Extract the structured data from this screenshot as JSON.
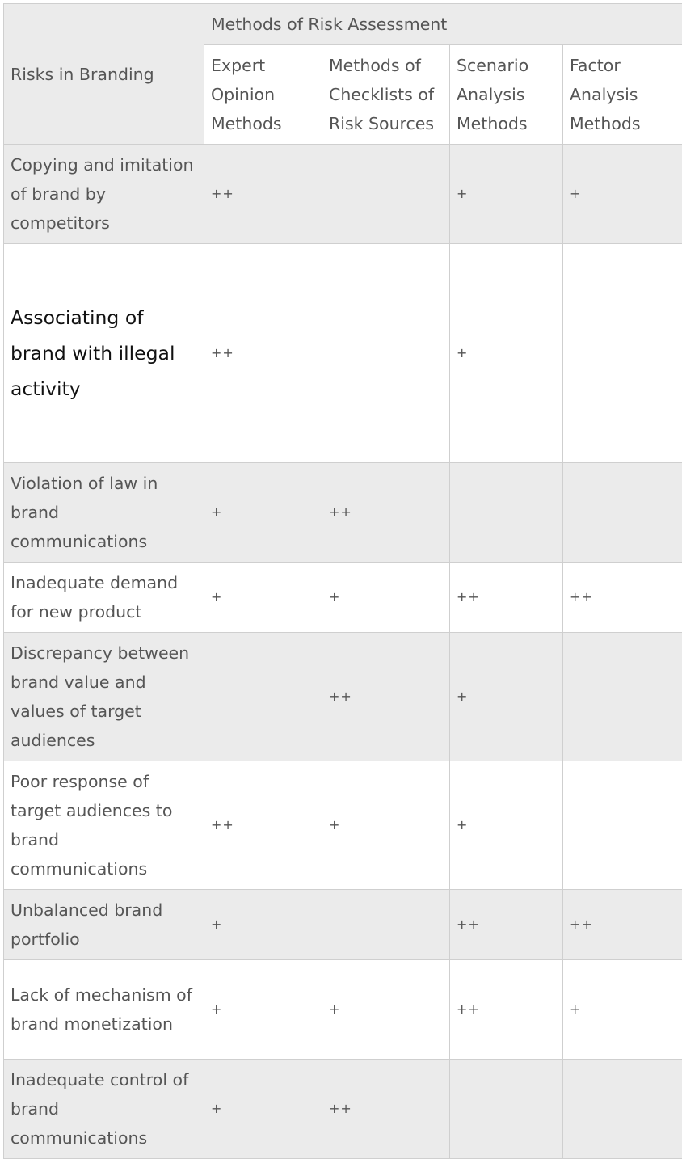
{
  "table": {
    "row_header_label": "Risks in Branding",
    "group_header_label": "Methods of Risk Assessment",
    "columns": [
      "Expert Opinion Methods",
      "Methods of Checklists of Risk Sources",
      "Scenario Analysis Methods",
      "Factor Analysis Methods"
    ],
    "rows": [
      {
        "risk": "Copying and imitation of brand by competitors",
        "cells": [
          "++",
          "",
          "+",
          "+"
        ]
      },
      {
        "risk": "Associating of brand with illegal activity",
        "cells": [
          "++",
          "",
          "+",
          ""
        ]
      },
      {
        "risk": "Violation of law in brand communications",
        "cells": [
          "+",
          "++",
          "",
          ""
        ]
      },
      {
        "risk": "Inadequate demand for new product",
        "cells": [
          "+",
          "+",
          "++",
          "++"
        ]
      },
      {
        "risk": "Discrepancy between brand value and values of target audiences",
        "cells": [
          "",
          "++",
          "+",
          ""
        ]
      },
      {
        "risk": "Poor response of target audiences to brand communications",
        "cells": [
          "++",
          "+",
          "+",
          ""
        ]
      },
      {
        "risk": "Unbalanced brand portfolio",
        "cells": [
          "+",
          "",
          "++",
          "++"
        ]
      },
      {
        "risk": "Lack of mechanism of brand monetization",
        "cells": [
          "+",
          "+",
          "++",
          "+"
        ]
      },
      {
        "risk": "Inadequate control of brand communications",
        "cells": [
          "+",
          "++",
          "",
          ""
        ]
      }
    ]
  },
  "colors": {
    "shaded_row": "#ebebeb",
    "plain_row": "#ffffff",
    "text": "#555555",
    "border": "#cfcfcf"
  }
}
